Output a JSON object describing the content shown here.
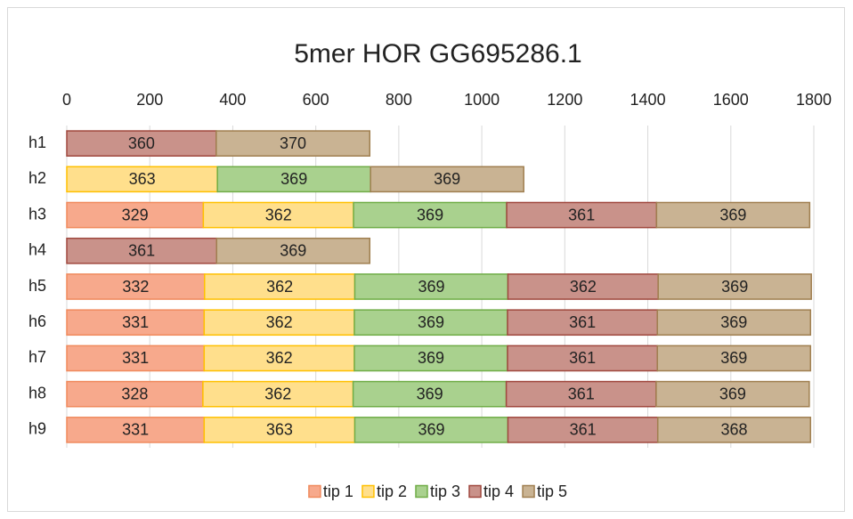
{
  "chart_data": {
    "type": "stacked-barh",
    "title": "5mer HOR GG695286.1",
    "categories": [
      "h1",
      "h2",
      "h3",
      "h4",
      "h5",
      "h6",
      "h7",
      "h8",
      "h9"
    ],
    "series": [
      {
        "name": "tip 1",
        "color": "#f7a98c",
        "edgecolor": "#f08a5d",
        "values": [
          null,
          null,
          329,
          null,
          332,
          331,
          331,
          328,
          331
        ]
      },
      {
        "name": "tip 2",
        "color": "#ffdf8c",
        "edgecolor": "#ffc000",
        "values": [
          null,
          363,
          362,
          null,
          362,
          362,
          362,
          362,
          363
        ]
      },
      {
        "name": "tip 3",
        "color": "#a9d18e",
        "edgecolor": "#70ad47",
        "values": [
          null,
          369,
          369,
          null,
          369,
          369,
          369,
          369,
          369
        ]
      },
      {
        "name": "tip 4",
        "color": "#c9928a",
        "edgecolor": "#a0483e",
        "values": [
          360,
          null,
          361,
          361,
          362,
          361,
          361,
          361,
          361
        ]
      },
      {
        "name": "tip 5",
        "color": "#c9b393",
        "edgecolor": "#a07f50",
        "values": [
          370,
          369,
          369,
          369,
          369,
          369,
          369,
          369,
          368
        ]
      }
    ],
    "xlim": [
      0,
      1800
    ],
    "xticks": [
      0,
      200,
      400,
      600,
      800,
      1000,
      1200,
      1400,
      1600,
      1800
    ],
    "grid": true,
    "x_axis_position": "top",
    "legend": "bottom"
  }
}
